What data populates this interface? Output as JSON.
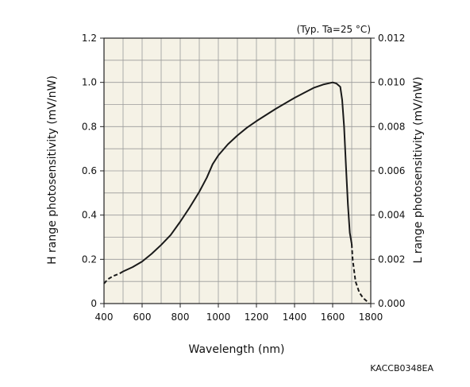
{
  "chart_data": {
    "type": "line",
    "condition_note": "(Typ. Ta=25 °C)",
    "figure_code": "KACCB0348EA",
    "xlabel": "Wavelength (nm)",
    "ylabel_left": "H range photosensitivity (mV/nW)",
    "ylabel_right": "L range photosensitivity (mV/nW)",
    "xlim": [
      400,
      1800
    ],
    "ylim_left": [
      0,
      1.2
    ],
    "ylim_right": [
      0,
      0.012
    ],
    "x_ticks": [
      "400",
      "600",
      "800",
      "1000",
      "1200",
      "1400",
      "1600",
      "1800"
    ],
    "y_ticks_left": [
      "0",
      "0.2",
      "0.4",
      "0.6",
      "0.8",
      "1.0",
      "1.2"
    ],
    "y_ticks_right": [
      "0.000",
      "0.002",
      "0.004",
      "0.006",
      "0.008",
      "0.010",
      "0.012"
    ],
    "grid": true,
    "background_color": "#f5f2e6",
    "line_color": "#1a1a1a",
    "series": [
      {
        "segments": [
          {
            "style": "dashed",
            "x": [
              400,
              420,
              450,
              480,
              500
            ],
            "y": [
              0.09,
              0.11,
              0.125,
              0.135,
              0.145
            ]
          },
          {
            "style": "solid",
            "x": [
              500,
              550,
              600,
              650,
              700,
              750,
              800,
              850,
              900,
              940,
              970,
              1000,
              1050,
              1100,
              1150,
              1200,
              1300,
              1400,
              1500,
              1550,
              1600,
              1620,
              1640,
              1650,
              1660,
              1670,
              1680,
              1690,
              1700
            ],
            "y": [
              0.145,
              0.165,
              0.19,
              0.225,
              0.265,
              0.31,
              0.37,
              0.435,
              0.505,
              0.57,
              0.63,
              0.67,
              0.72,
              0.76,
              0.795,
              0.825,
              0.88,
              0.93,
              0.975,
              0.99,
              1.0,
              0.995,
              0.98,
              0.92,
              0.8,
              0.62,
              0.45,
              0.32,
              0.27
            ]
          },
          {
            "style": "dashed",
            "x": [
              1700,
              1705,
              1720,
              1740,
              1760,
              1780,
              1790
            ],
            "y": [
              0.27,
              0.2,
              0.1,
              0.05,
              0.025,
              0.01,
              0.0
            ]
          }
        ]
      }
    ]
  }
}
